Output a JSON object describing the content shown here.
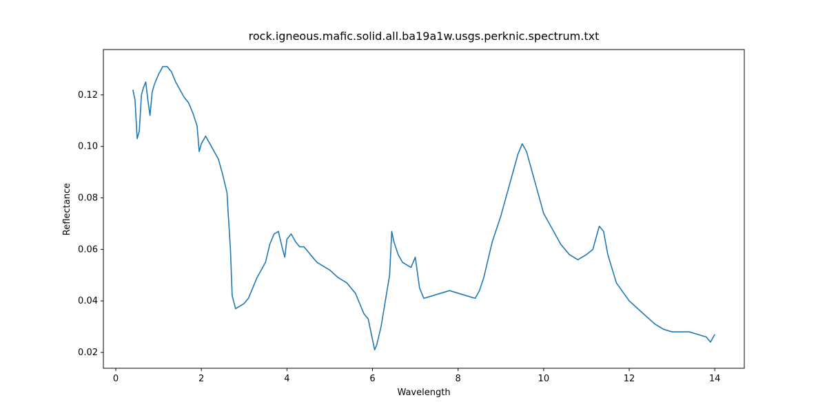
{
  "chart_data": {
    "type": "line",
    "title": "rock.igneous.mafic.solid.all.ba19a1w.usgs.perknic.spectrum.txt",
    "x_label": "Wavelength",
    "y_label": "Reflectance",
    "color": "#1f77b4",
    "xlim": [
      -0.29,
      14.69
    ],
    "ylim": [
      0.01385,
      0.1376
    ],
    "xticks": [
      0,
      2,
      4,
      6,
      8,
      10,
      12,
      14
    ],
    "yticks": [
      0.02,
      0.04,
      0.06,
      0.08,
      {
        "value": 0.1,
        "label": "0.10"
      },
      0.12
    ],
    "x": [
      0.4,
      0.45,
      0.5,
      0.55,
      0.6,
      0.65,
      0.7,
      0.75,
      0.8,
      0.85,
      0.9,
      1.0,
      1.1,
      1.2,
      1.3,
      1.4,
      1.5,
      1.6,
      1.7,
      1.8,
      1.9,
      1.95,
      2.0,
      2.1,
      2.2,
      2.3,
      2.4,
      2.5,
      2.6,
      2.62,
      2.68,
      2.72,
      2.8,
      2.9,
      3.0,
      3.1,
      3.2,
      3.3,
      3.4,
      3.5,
      3.6,
      3.7,
      3.8,
      3.9,
      3.95,
      4.0,
      4.1,
      4.2,
      4.3,
      4.4,
      4.5,
      4.6,
      4.7,
      4.8,
      5.0,
      5.2,
      5.4,
      5.5,
      5.6,
      5.7,
      5.8,
      5.9,
      6.0,
      6.05,
      6.1,
      6.2,
      6.3,
      6.4,
      6.45,
      6.5,
      6.6,
      6.7,
      6.8,
      6.9,
      7.0,
      7.1,
      7.2,
      7.4,
      7.6,
      7.8,
      8.0,
      8.2,
      8.4,
      8.5,
      8.6,
      8.8,
      9.0,
      9.2,
      9.4,
      9.5,
      9.6,
      9.8,
      10.0,
      10.2,
      10.4,
      10.6,
      10.8,
      11.0,
      11.15,
      11.3,
      11.4,
      11.5,
      11.7,
      12.0,
      12.2,
      12.4,
      12.6,
      12.8,
      13.0,
      13.4,
      13.8,
      13.9,
      14.0
    ],
    "values": [
      0.122,
      0.118,
      0.103,
      0.106,
      0.12,
      0.123,
      0.125,
      0.118,
      0.112,
      0.121,
      0.124,
      0.128,
      0.131,
      0.131,
      0.129,
      0.125,
      0.122,
      0.119,
      0.117,
      0.113,
      0.108,
      0.098,
      0.101,
      0.104,
      0.101,
      0.098,
      0.095,
      0.089,
      0.082,
      0.076,
      0.06,
      0.042,
      0.037,
      0.038,
      0.039,
      0.041,
      0.045,
      0.049,
      0.052,
      0.055,
      0.062,
      0.066,
      0.067,
      0.06,
      0.057,
      0.064,
      0.066,
      0.063,
      0.061,
      0.061,
      0.059,
      0.057,
      0.055,
      0.054,
      0.052,
      0.049,
      0.047,
      0.045,
      0.043,
      0.039,
      0.035,
      0.033,
      0.025,
      0.021,
      0.023,
      0.03,
      0.04,
      0.05,
      0.067,
      0.063,
      0.058,
      0.055,
      0.054,
      0.053,
      0.057,
      0.045,
      0.041,
      0.042,
      0.043,
      0.044,
      0.043,
      0.042,
      0.041,
      0.044,
      0.049,
      0.063,
      0.073,
      0.085,
      0.097,
      0.101,
      0.098,
      0.086,
      0.074,
      0.068,
      0.062,
      0.058,
      0.056,
      0.058,
      0.06,
      0.069,
      0.067,
      0.058,
      0.047,
      0.04,
      0.037,
      0.034,
      0.031,
      0.029,
      0.028,
      0.028,
      0.026,
      0.024,
      0.027
    ]
  }
}
